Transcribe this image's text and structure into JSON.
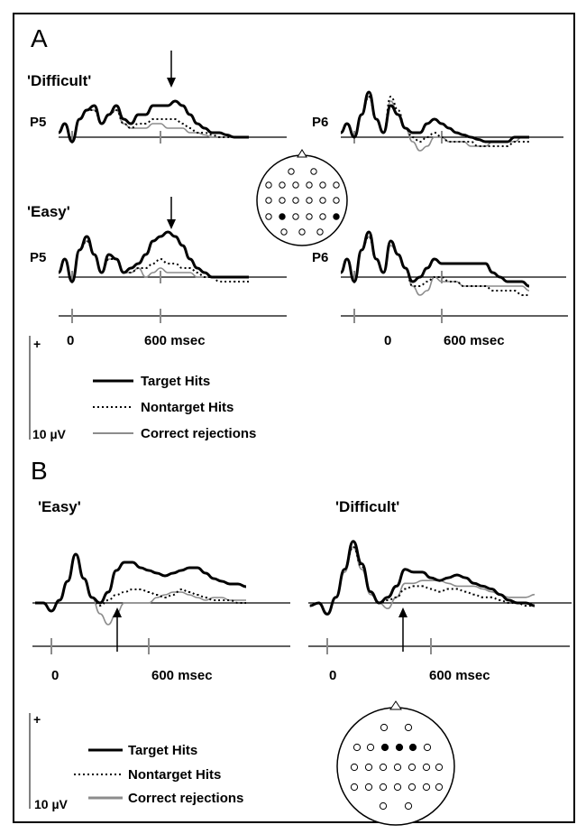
{
  "panels": {
    "A": {
      "letter": "A",
      "conditions": {
        "difficult": "'Difficult'",
        "easy": "'Easy'"
      },
      "electrodes": {
        "left": "P5",
        "right": "P6"
      },
      "time_axis": {
        "zero": "0",
        "label": "600 msec"
      },
      "legend": {
        "target": "Target Hits",
        "nontarget": "Nontarget Hits",
        "correct": "Correct rejections"
      },
      "scale": {
        "plus": "+",
        "value": "10 µV"
      }
    },
    "B": {
      "letter": "B",
      "conditions": {
        "easy": "'Easy'",
        "difficult": "'Difficult'"
      },
      "time_axis": {
        "zero": "0",
        "label": "600 msec"
      },
      "legend": {
        "target": "Target Hits",
        "nontarget": "Nontarget Hits",
        "correct": "Correct rejections"
      },
      "scale": {
        "plus": "+",
        "value": "10 µV"
      }
    }
  },
  "colors": {
    "target": "#000000",
    "nontarget": "#000000",
    "correct": "#8c8c8c",
    "axis": "#000000",
    "tick": "#8c8c8c"
  },
  "chart_data": [
    {
      "type": "line",
      "panel": "A",
      "condition": "'Difficult'",
      "electrode": "P5",
      "x": [
        -100,
        -50,
        0,
        50,
        100,
        150,
        200,
        250,
        300,
        350,
        400,
        450,
        500,
        550,
        600,
        650,
        700,
        750,
        800,
        850,
        900,
        950,
        1000,
        1050,
        1100,
        1150,
        1200
      ],
      "series": [
        {
          "name": "Target Hits",
          "values": [
            1,
            3,
            -1,
            4,
            6,
            7,
            3,
            5,
            7,
            4,
            3,
            5,
            5,
            7,
            7,
            7,
            8,
            7,
            5,
            3,
            2,
            1,
            1,
            0.5,
            0,
            0,
            0
          ]
        },
        {
          "name": "Nontarget Hits",
          "values": [
            1,
            3,
            -1,
            4,
            6,
            6,
            3,
            5,
            6,
            3,
            2,
            3,
            3,
            4,
            4,
            4,
            4,
            3,
            2,
            1,
            1,
            0.5,
            0,
            0,
            0,
            0,
            0
          ]
        },
        {
          "name": "Correct rejections",
          "values": [
            1,
            3,
            -1,
            4,
            6,
            6,
            3,
            5,
            6,
            3,
            2,
            2,
            2,
            3,
            3,
            2,
            2,
            2,
            1,
            1,
            0.5,
            0,
            0,
            0,
            0,
            0,
            0
          ]
        }
      ]
    },
    {
      "type": "line",
      "panel": "A",
      "condition": "'Difficult'",
      "electrode": "P6",
      "x": [
        -100,
        -50,
        0,
        50,
        100,
        150,
        200,
        250,
        300,
        350,
        400,
        450,
        500,
        550,
        600,
        650,
        700,
        750,
        800,
        850,
        900,
        950,
        1000,
        1050,
        1100,
        1150,
        1200
      ],
      "series": [
        {
          "name": "Target Hits",
          "values": [
            1,
            3,
            0,
            5,
            10,
            4,
            1,
            7,
            5,
            2,
            1,
            1,
            3,
            4,
            3,
            2,
            1,
            0.5,
            0,
            -0.5,
            -1,
            -1,
            -1,
            -1,
            0,
            0,
            0
          ]
        },
        {
          "name": "Nontarget Hits",
          "values": [
            1,
            3,
            0,
            5,
            9,
            4,
            1,
            9,
            6,
            2,
            0,
            -1,
            0,
            1,
            0,
            -1,
            -1,
            -1,
            -1,
            -2,
            -2,
            -2,
            -2,
            -2,
            -1,
            -1,
            -1
          ]
        },
        {
          "name": "Correct rejections",
          "values": [
            1,
            3,
            0,
            5,
            9,
            4,
            1,
            8,
            5,
            2,
            -1,
            -3,
            -2,
            0,
            0,
            -1,
            -1,
            -1,
            -2,
            -2,
            -2,
            -1,
            -1,
            -1,
            -1,
            0,
            0
          ]
        }
      ]
    },
    {
      "type": "line",
      "panel": "A",
      "condition": "'Easy'",
      "electrode": "P5",
      "x": [
        -100,
        -50,
        0,
        50,
        100,
        150,
        200,
        250,
        300,
        350,
        400,
        450,
        500,
        550,
        600,
        650,
        700,
        750,
        800,
        850,
        900,
        950,
        1000,
        1050,
        1100,
        1150,
        1200
      ],
      "series": [
        {
          "name": "Target Hits",
          "values": [
            1,
            4,
            -1,
            6,
            9,
            5,
            1,
            5,
            4,
            1,
            2,
            3,
            5,
            8,
            9,
            10,
            9,
            7,
            4,
            2,
            1,
            0,
            0,
            0,
            0,
            0,
            0
          ]
        },
        {
          "name": "Nontarget Hits",
          "values": [
            1,
            4,
            -1,
            6,
            8,
            5,
            1,
            4,
            4,
            1,
            1,
            2,
            2,
            3,
            4,
            3,
            3,
            2,
            2,
            1,
            0,
            0,
            -1,
            -1,
            -1,
            -1,
            -1
          ]
        },
        {
          "name": "Correct rejections",
          "values": [
            1,
            4,
            -1,
            6,
            8,
            5,
            1,
            4,
            4,
            1,
            1,
            2,
            0,
            1,
            2,
            1,
            1,
            1,
            1,
            0,
            0,
            0,
            0,
            0,
            0,
            0,
            0
          ]
        }
      ]
    },
    {
      "type": "line",
      "panel": "A",
      "condition": "'Easy'",
      "electrode": "P6",
      "x": [
        -100,
        -50,
        0,
        50,
        100,
        150,
        200,
        250,
        300,
        350,
        400,
        450,
        500,
        550,
        600,
        650,
        700,
        750,
        800,
        850,
        900,
        950,
        1000,
        1050,
        1100,
        1150,
        1200
      ],
      "series": [
        {
          "name": "Target Hits",
          "values": [
            1,
            4,
            -1,
            6,
            10,
            4,
            1,
            8,
            5,
            2,
            -1,
            0,
            2,
            4,
            3,
            3,
            3,
            3,
            3,
            3,
            3,
            1,
            0,
            -1,
            -1,
            -1,
            -2
          ]
        },
        {
          "name": "Nontarget Hits",
          "values": [
            1,
            4,
            -1,
            6,
            9,
            4,
            1,
            8,
            5,
            2,
            -2,
            -2,
            -1,
            0,
            0,
            -1,
            -1,
            -2,
            -2,
            -2,
            -2,
            -3,
            -3,
            -3,
            -3,
            -4,
            -4
          ]
        },
        {
          "name": "Correct rejections",
          "values": [
            1,
            4,
            -1,
            6,
            9,
            4,
            1,
            7,
            5,
            2,
            -2,
            -4,
            -3,
            0,
            -1,
            -1,
            -1,
            -2,
            -2,
            -2,
            -2,
            -2,
            -2,
            -2,
            -2,
            -2,
            -3
          ]
        }
      ]
    },
    {
      "type": "line",
      "panel": "B",
      "condition": "'Easy'",
      "x": [
        -100,
        -50,
        0,
        50,
        100,
        150,
        200,
        250,
        300,
        350,
        400,
        450,
        500,
        550,
        600,
        650,
        700,
        750,
        800,
        850,
        900,
        950,
        1000,
        1050,
        1100,
        1150,
        1200
      ],
      "series": [
        {
          "name": "Target Hits",
          "values": [
            0,
            0,
            -3,
            1,
            8,
            18,
            9,
            2,
            0,
            4,
            12,
            15,
            15,
            13,
            12,
            11,
            10,
            11,
            12,
            13,
            13,
            11,
            9,
            8,
            7,
            7,
            6
          ]
        },
        {
          "name": "Nontarget Hits",
          "values": [
            0,
            0,
            -3,
            1,
            8,
            18,
            9,
            2,
            -1,
            1,
            3,
            4,
            5,
            5,
            4,
            3,
            2,
            3,
            5,
            4,
            3,
            2,
            1,
            1,
            1,
            0,
            0
          ]
        },
        {
          "name": "Correct rejections",
          "values": [
            0,
            0,
            -3,
            1,
            8,
            18,
            9,
            2,
            -4,
            -8,
            -4,
            0,
            0,
            0,
            0,
            2,
            3,
            4,
            4,
            3,
            2,
            1,
            2,
            2,
            1,
            1,
            1
          ]
        }
      ]
    },
    {
      "type": "line",
      "panel": "B",
      "condition": "'Difficult'",
      "x": [
        -100,
        -50,
        0,
        50,
        100,
        150,
        200,
        250,
        300,
        350,
        400,
        450,
        500,
        550,
        600,
        650,
        700,
        750,
        800,
        850,
        900,
        950,
        1000,
        1050,
        1100,
        1150,
        1200
      ],
      "series": [
        {
          "name": "Target Hits",
          "values": [
            -1,
            0,
            -4,
            2,
            12,
            22,
            14,
            4,
            0,
            2,
            6,
            12,
            11,
            11,
            9,
            8,
            9,
            10,
            9,
            7,
            6,
            5,
            3,
            1,
            0,
            0,
            -1
          ]
        },
        {
          "name": "Nontarget Hits",
          "values": [
            -1,
            0,
            -4,
            2,
            12,
            20,
            13,
            4,
            0,
            1,
            2,
            5,
            6,
            6,
            5,
            4,
            5,
            5,
            4,
            3,
            2,
            2,
            1,
            0,
            0,
            -1,
            -1
          ]
        },
        {
          "name": "Correct rejections",
          "values": [
            -1,
            0,
            -4,
            2,
            11,
            20,
            12,
            3,
            0,
            -2,
            2,
            7,
            7,
            8,
            8,
            8,
            7,
            6,
            6,
            6,
            5,
            4,
            3,
            2,
            2,
            2,
            3
          ]
        }
      ]
    }
  ]
}
